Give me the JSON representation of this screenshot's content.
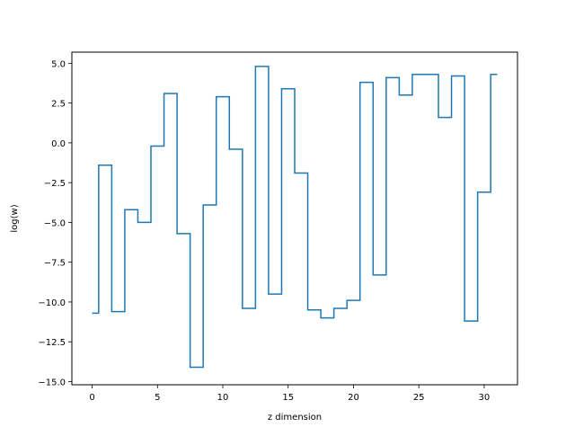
{
  "chart_data": {
    "type": "line",
    "drawstyle": "steps-mid",
    "xlabel": "z dimension",
    "ylabel": "log(w)",
    "xlim": [
      -1.55,
      32.55
    ],
    "ylim": [
      -15.2,
      5.7
    ],
    "xticks": [
      0,
      5,
      10,
      15,
      20,
      25,
      30
    ],
    "yticks": [
      -15.0,
      -12.5,
      -10.0,
      -7.5,
      -5.0,
      -2.5,
      0.0,
      2.5,
      5.0
    ],
    "xtick_labels": [
      "0",
      "5",
      "10",
      "15",
      "20",
      "25",
      "30"
    ],
    "ytick_labels": [
      "−15.0",
      "−12.5",
      "−10.0",
      "−7.5",
      "−5.0",
      "−2.5",
      "0.0",
      "2.5",
      "5.0"
    ],
    "grid": false,
    "series": [
      {
        "color": "#1f77b4",
        "x": [
          0,
          1,
          2,
          3,
          4,
          5,
          6,
          7,
          8,
          9,
          10,
          11,
          12,
          13,
          14,
          15,
          16,
          17,
          18,
          19,
          20,
          21,
          22,
          23,
          24,
          25,
          26,
          27,
          28,
          29,
          30,
          31
        ],
        "y": [
          -10.7,
          -1.4,
          -10.6,
          -4.2,
          -5.0,
          -0.2,
          3.1,
          -5.7,
          -14.1,
          -3.9,
          2.9,
          -0.4,
          -10.4,
          4.8,
          -9.5,
          3.4,
          -1.9,
          -10.5,
          -11.0,
          -10.4,
          -9.9,
          3.8,
          -8.3,
          4.1,
          3.0,
          4.3,
          4.3,
          1.6,
          4.2,
          -11.2,
          -3.1,
          4.3
        ]
      }
    ]
  }
}
